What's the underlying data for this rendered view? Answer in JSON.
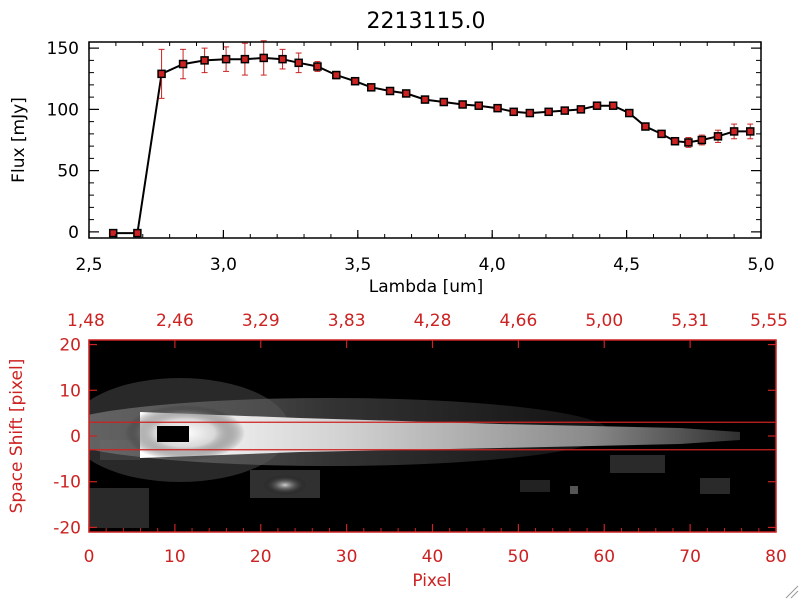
{
  "chart_data": [
    {
      "type": "line",
      "title": "2213115.0",
      "xlabel": "Lambda [um]",
      "ylabel": "Flux [mJy]",
      "xlim": [
        2.5,
        5.0
      ],
      "ylim": [
        -5,
        155
      ],
      "xticks": [
        "2.5",
        "3.0",
        "3.5",
        "4.0",
        "4.5",
        "5.0"
      ],
      "yticks": [
        "0",
        "50",
        "100",
        "150"
      ],
      "line_color": "#000000",
      "marker_color": "#cc2222",
      "error_color": "#cc2222",
      "series": [
        {
          "x": [
            2.59,
            2.68,
            2.77,
            2.85,
            2.93,
            3.01,
            3.08,
            3.15,
            3.22,
            3.28,
            3.35,
            3.42,
            3.49,
            3.55,
            3.62,
            3.68,
            3.75,
            3.82,
            3.89,
            3.95,
            4.02,
            4.08,
            4.14,
            4.21,
            4.27,
            4.33,
            4.39,
            4.45,
            4.51,
            4.57,
            4.63,
            4.68,
            4.73,
            4.78,
            4.84,
            4.9,
            4.96
          ],
          "y": [
            -1,
            -1,
            129,
            137,
            140,
            141,
            141,
            142,
            141,
            138,
            135,
            128,
            123,
            118,
            115,
            113,
            108,
            106,
            104,
            103,
            101,
            98,
            97,
            98,
            99,
            100,
            103,
            103,
            97,
            86,
            80,
            74,
            73,
            75,
            78,
            82,
            82
          ],
          "yerr": [
            0,
            0,
            20,
            12,
            10,
            10,
            13,
            14,
            8,
            8,
            4,
            3,
            2,
            2,
            2,
            2,
            2,
            2,
            2,
            2,
            2,
            2,
            2,
            2,
            2,
            2,
            2,
            2,
            2,
            2,
            2,
            2,
            4,
            4,
            5,
            6,
            6
          ]
        }
      ]
    },
    {
      "type": "heatmap",
      "xlabel": "Pixel",
      "ylabel": "Space Shift [pixel]",
      "xlim": [
        0,
        80
      ],
      "ylim": [
        -21,
        21
      ],
      "xticks": [
        "0",
        "10",
        "20",
        "30",
        "40",
        "50",
        "60",
        "70",
        "80"
      ],
      "yticks": [
        "-20",
        "-10",
        "0",
        "10",
        "20"
      ],
      "top_ticks": [
        "1.48",
        "2.46",
        "3.29",
        "3.83",
        "4.28",
        "4.66",
        "5.00",
        "5.31",
        "5.55"
      ],
      "extraction_limits": [
        -3,
        3
      ],
      "axis_color": "#cc2222"
    }
  ]
}
